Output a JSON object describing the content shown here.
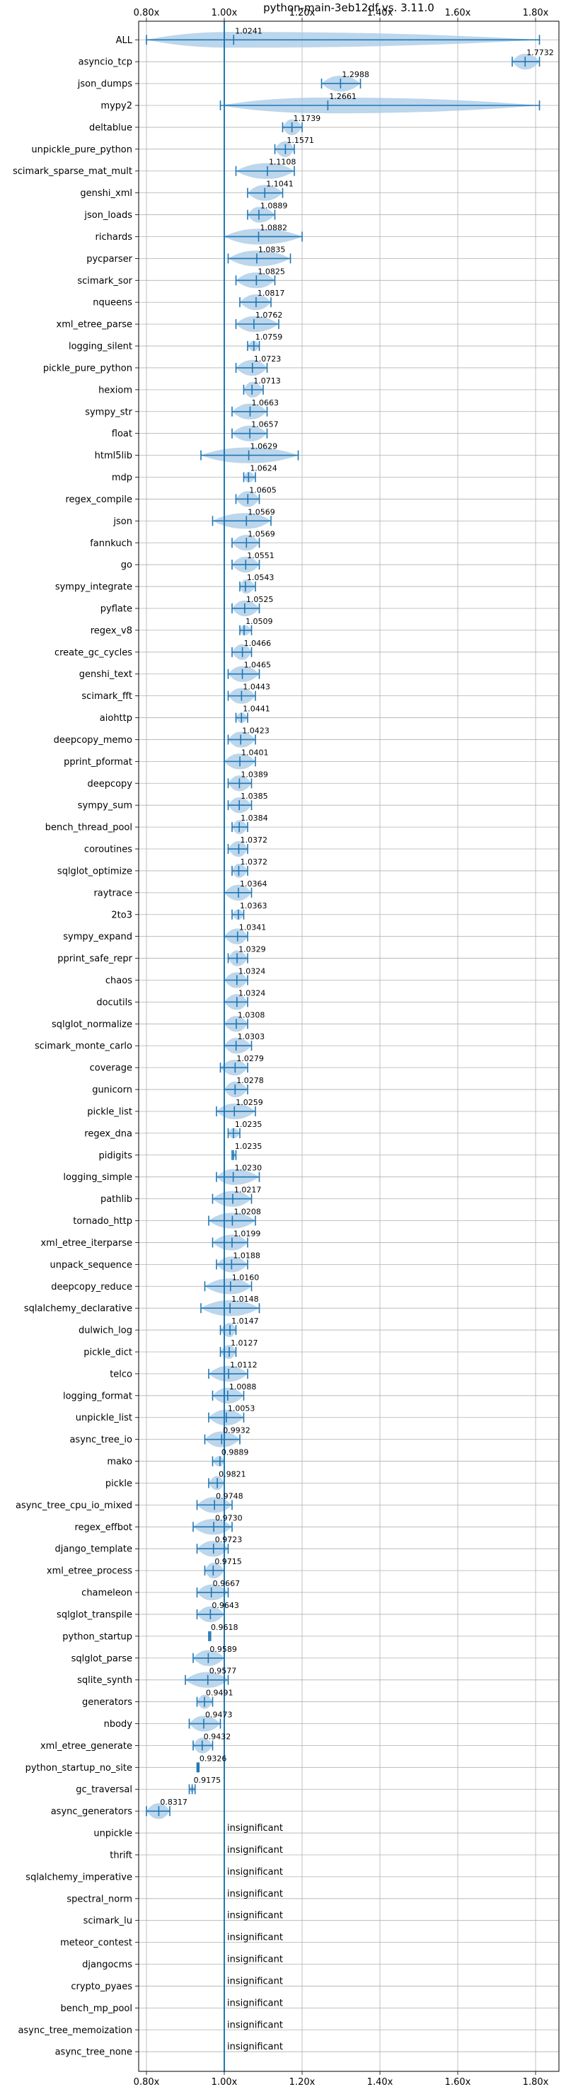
{
  "chart_data": {
    "type": "violin",
    "title": "python-main-3eb12df vs. 3.11.0",
    "xlim": [
      0.78,
      1.86
    ],
    "xticks": [
      0.8,
      1.0,
      1.2,
      1.4,
      1.6,
      1.8
    ],
    "xtick_labels": [
      "0.80x",
      "1.00x",
      "1.20x",
      "1.40x",
      "1.60x",
      "1.80x"
    ],
    "reference_line": 1.0,
    "grid": true,
    "colors": {
      "violin": "#a6c8e6",
      "line": "#1f77b4",
      "grid": "#b0b0b0"
    },
    "insignificant_label": "insignificant",
    "benchmarks": [
      {
        "name": "ALL",
        "mean": 1.0241,
        "label": "1.0241",
        "min": 0.8,
        "max": 1.81
      },
      {
        "name": "asyncio_tcp",
        "mean": 1.7732,
        "label": "1.7732",
        "min": 1.74,
        "max": 1.81
      },
      {
        "name": "json_dumps",
        "mean": 1.2988,
        "label": "1.2988",
        "min": 1.25,
        "max": 1.35
      },
      {
        "name": "mypy2",
        "mean": 1.2661,
        "label": "1.2661",
        "min": 0.99,
        "max": 1.81
      },
      {
        "name": "deltablue",
        "mean": 1.1739,
        "label": "1.1739",
        "min": 1.15,
        "max": 1.2
      },
      {
        "name": "unpickle_pure_python",
        "mean": 1.1571,
        "label": "1.1571",
        "min": 1.13,
        "max": 1.18
      },
      {
        "name": "scimark_sparse_mat_mult",
        "mean": 1.1108,
        "label": "1.1108",
        "min": 1.03,
        "max": 1.18
      },
      {
        "name": "genshi_xml",
        "mean": 1.1041,
        "label": "1.1041",
        "min": 1.06,
        "max": 1.15
      },
      {
        "name": "json_loads",
        "mean": 1.0889,
        "label": "1.0889",
        "min": 1.06,
        "max": 1.13
      },
      {
        "name": "richards",
        "mean": 1.0882,
        "label": "1.0882",
        "min": 1.0,
        "max": 1.2
      },
      {
        "name": "pycparser",
        "mean": 1.0835,
        "label": "1.0835",
        "min": 1.01,
        "max": 1.17
      },
      {
        "name": "scimark_sor",
        "mean": 1.0825,
        "label": "1.0825",
        "min": 1.03,
        "max": 1.13
      },
      {
        "name": "nqueens",
        "mean": 1.0817,
        "label": "1.0817",
        "min": 1.04,
        "max": 1.12
      },
      {
        "name": "xml_etree_parse",
        "mean": 1.0762,
        "label": "1.0762",
        "min": 1.03,
        "max": 1.14
      },
      {
        "name": "logging_silent",
        "mean": 1.0759,
        "label": "1.0759",
        "min": 1.06,
        "max": 1.09
      },
      {
        "name": "pickle_pure_python",
        "mean": 1.0723,
        "label": "1.0723",
        "min": 1.03,
        "max": 1.11
      },
      {
        "name": "hexiom",
        "mean": 1.0713,
        "label": "1.0713",
        "min": 1.05,
        "max": 1.1
      },
      {
        "name": "sympy_str",
        "mean": 1.0663,
        "label": "1.0663",
        "min": 1.02,
        "max": 1.11
      },
      {
        "name": "float",
        "mean": 1.0657,
        "label": "1.0657",
        "min": 1.02,
        "max": 1.11
      },
      {
        "name": "html5lib",
        "mean": 1.0629,
        "label": "1.0629",
        "min": 0.94,
        "max": 1.19
      },
      {
        "name": "mdp",
        "mean": 1.0624,
        "label": "1.0624",
        "min": 1.05,
        "max": 1.08
      },
      {
        "name": "regex_compile",
        "mean": 1.0605,
        "label": "1.0605",
        "min": 1.03,
        "max": 1.09
      },
      {
        "name": "json",
        "mean": 1.0569,
        "label": "1.0569",
        "min": 0.97,
        "max": 1.12
      },
      {
        "name": "fannkuch",
        "mean": 1.0569,
        "label": "1.0569",
        "min": 1.02,
        "max": 1.09
      },
      {
        "name": "go",
        "mean": 1.0551,
        "label": "1.0551",
        "min": 1.02,
        "max": 1.09
      },
      {
        "name": "sympy_integrate",
        "mean": 1.0543,
        "label": "1.0543",
        "min": 1.04,
        "max": 1.08
      },
      {
        "name": "pyflate",
        "mean": 1.0525,
        "label": "1.0525",
        "min": 1.02,
        "max": 1.09
      },
      {
        "name": "regex_v8",
        "mean": 1.0509,
        "label": "1.0509",
        "min": 1.04,
        "max": 1.07
      },
      {
        "name": "create_gc_cycles",
        "mean": 1.0466,
        "label": "1.0466",
        "min": 1.02,
        "max": 1.07
      },
      {
        "name": "genshi_text",
        "mean": 1.0465,
        "label": "1.0465",
        "min": 1.01,
        "max": 1.09
      },
      {
        "name": "scimark_fft",
        "mean": 1.0443,
        "label": "1.0443",
        "min": 1.01,
        "max": 1.08
      },
      {
        "name": "aiohttp",
        "mean": 1.0441,
        "label": "1.0441",
        "min": 1.03,
        "max": 1.06
      },
      {
        "name": "deepcopy_memo",
        "mean": 1.0423,
        "label": "1.0423",
        "min": 1.01,
        "max": 1.08
      },
      {
        "name": "pprint_pformat",
        "mean": 1.0401,
        "label": "1.0401",
        "min": 1.0,
        "max": 1.08
      },
      {
        "name": "deepcopy",
        "mean": 1.0389,
        "label": "1.0389",
        "min": 1.01,
        "max": 1.07
      },
      {
        "name": "sympy_sum",
        "mean": 1.0385,
        "label": "1.0385",
        "min": 1.01,
        "max": 1.07
      },
      {
        "name": "bench_thread_pool",
        "mean": 1.0384,
        "label": "1.0384",
        "min": 1.02,
        "max": 1.06
      },
      {
        "name": "coroutines",
        "mean": 1.0372,
        "label": "1.0372",
        "min": 1.01,
        "max": 1.06
      },
      {
        "name": "sqlglot_optimize",
        "mean": 1.0372,
        "label": "1.0372",
        "min": 1.02,
        "max": 1.06
      },
      {
        "name": "raytrace",
        "mean": 1.0364,
        "label": "1.0364",
        "min": 1.0,
        "max": 1.07
      },
      {
        "name": "2to3",
        "mean": 1.0363,
        "label": "1.0363",
        "min": 1.02,
        "max": 1.05
      },
      {
        "name": "sympy_expand",
        "mean": 1.0341,
        "label": "1.0341",
        "min": 1.0,
        "max": 1.06
      },
      {
        "name": "pprint_safe_repr",
        "mean": 1.0329,
        "label": "1.0329",
        "min": 1.01,
        "max": 1.06
      },
      {
        "name": "chaos",
        "mean": 1.0324,
        "label": "1.0324",
        "min": 1.0,
        "max": 1.06
      },
      {
        "name": "docutils",
        "mean": 1.0324,
        "label": "1.0324",
        "min": 1.0,
        "max": 1.06
      },
      {
        "name": "sqlglot_normalize",
        "mean": 1.0308,
        "label": "1.0308",
        "min": 1.0,
        "max": 1.06
      },
      {
        "name": "scimark_monte_carlo",
        "mean": 1.0303,
        "label": "1.0303",
        "min": 1.0,
        "max": 1.07
      },
      {
        "name": "coverage",
        "mean": 1.0279,
        "label": "1.0279",
        "min": 0.99,
        "max": 1.06
      },
      {
        "name": "gunicorn",
        "mean": 1.0278,
        "label": "1.0278",
        "min": 1.0,
        "max": 1.06
      },
      {
        "name": "pickle_list",
        "mean": 1.0259,
        "label": "1.0259",
        "min": 0.98,
        "max": 1.08
      },
      {
        "name": "regex_dna",
        "mean": 1.0235,
        "label": "1.0235",
        "min": 1.01,
        "max": 1.04
      },
      {
        "name": "pidigits",
        "mean": 1.0235,
        "label": "1.0235",
        "min": 1.02,
        "max": 1.03
      },
      {
        "name": "logging_simple",
        "mean": 1.023,
        "label": "1.0230",
        "min": 0.98,
        "max": 1.09
      },
      {
        "name": "pathlib",
        "mean": 1.0217,
        "label": "1.0217",
        "min": 0.97,
        "max": 1.07
      },
      {
        "name": "tornado_http",
        "mean": 1.0208,
        "label": "1.0208",
        "min": 0.96,
        "max": 1.08
      },
      {
        "name": "xml_etree_iterparse",
        "mean": 1.0199,
        "label": "1.0199",
        "min": 0.97,
        "max": 1.06
      },
      {
        "name": "unpack_sequence",
        "mean": 1.0188,
        "label": "1.0188",
        "min": 0.98,
        "max": 1.06
      },
      {
        "name": "deepcopy_reduce",
        "mean": 1.016,
        "label": "1.0160",
        "min": 0.95,
        "max": 1.07
      },
      {
        "name": "sqlalchemy_declarative",
        "mean": 1.0148,
        "label": "1.0148",
        "min": 0.94,
        "max": 1.09
      },
      {
        "name": "dulwich_log",
        "mean": 1.0147,
        "label": "1.0147",
        "min": 0.99,
        "max": 1.03
      },
      {
        "name": "pickle_dict",
        "mean": 1.0127,
        "label": "1.0127",
        "min": 0.99,
        "max": 1.03
      },
      {
        "name": "telco",
        "mean": 1.0112,
        "label": "1.0112",
        "min": 0.96,
        "max": 1.06
      },
      {
        "name": "logging_format",
        "mean": 1.0088,
        "label": "1.0088",
        "min": 0.97,
        "max": 1.05
      },
      {
        "name": "unpickle_list",
        "mean": 1.0053,
        "label": "1.0053",
        "min": 0.96,
        "max": 1.05
      },
      {
        "name": "async_tree_io",
        "mean": 0.9932,
        "label": "0.9932",
        "min": 0.95,
        "max": 1.04
      },
      {
        "name": "mako",
        "mean": 0.9889,
        "label": "0.9889",
        "min": 0.97,
        "max": 1.0
      },
      {
        "name": "pickle",
        "mean": 0.9821,
        "label": "0.9821",
        "min": 0.96,
        "max": 1.0
      },
      {
        "name": "async_tree_cpu_io_mixed",
        "mean": 0.9748,
        "label": "0.9748",
        "min": 0.93,
        "max": 1.02
      },
      {
        "name": "regex_effbot",
        "mean": 0.973,
        "label": "0.9730",
        "min": 0.92,
        "max": 1.02
      },
      {
        "name": "django_template",
        "mean": 0.9723,
        "label": "0.9723",
        "min": 0.93,
        "max": 1.01
      },
      {
        "name": "xml_etree_process",
        "mean": 0.9715,
        "label": "0.9715",
        "min": 0.95,
        "max": 1.0
      },
      {
        "name": "chameleon",
        "mean": 0.9667,
        "label": "0.9667",
        "min": 0.93,
        "max": 1.01
      },
      {
        "name": "sqlglot_transpile",
        "mean": 0.9643,
        "label": "0.9643",
        "min": 0.93,
        "max": 1.0
      },
      {
        "name": "python_startup",
        "mean": 0.9618,
        "label": "0.9618",
        "min": 0.96,
        "max": 0.965
      },
      {
        "name": "sqlglot_parse",
        "mean": 0.9589,
        "label": "0.9589",
        "min": 0.92,
        "max": 1.0
      },
      {
        "name": "sqlite_synth",
        "mean": 0.9577,
        "label": "0.9577",
        "min": 0.9,
        "max": 1.01
      },
      {
        "name": "generators",
        "mean": 0.9491,
        "label": "0.9491",
        "min": 0.93,
        "max": 0.97
      },
      {
        "name": "nbody",
        "mean": 0.9473,
        "label": "0.9473",
        "min": 0.91,
        "max": 0.99
      },
      {
        "name": "xml_etree_generate",
        "mean": 0.9432,
        "label": "0.9432",
        "min": 0.92,
        "max": 0.97
      },
      {
        "name": "python_startup_no_site",
        "mean": 0.9326,
        "label": "0.9326",
        "min": 0.93,
        "max": 0.935
      },
      {
        "name": "gc_traversal",
        "mean": 0.9175,
        "label": "0.9175",
        "min": 0.91,
        "max": 0.925
      },
      {
        "name": "async_generators",
        "mean": 0.8317,
        "label": "0.8317",
        "min": 0.8,
        "max": 0.86
      },
      {
        "name": "unpickle",
        "insignificant": true
      },
      {
        "name": "thrift",
        "insignificant": true
      },
      {
        "name": "sqlalchemy_imperative",
        "insignificant": true
      },
      {
        "name": "spectral_norm",
        "insignificant": true
      },
      {
        "name": "scimark_lu",
        "insignificant": true
      },
      {
        "name": "meteor_contest",
        "insignificant": true
      },
      {
        "name": "djangocms",
        "insignificant": true
      },
      {
        "name": "crypto_pyaes",
        "insignificant": true
      },
      {
        "name": "bench_mp_pool",
        "insignificant": true
      },
      {
        "name": "async_tree_memoization",
        "insignificant": true
      },
      {
        "name": "async_tree_none",
        "insignificant": true
      }
    ]
  }
}
